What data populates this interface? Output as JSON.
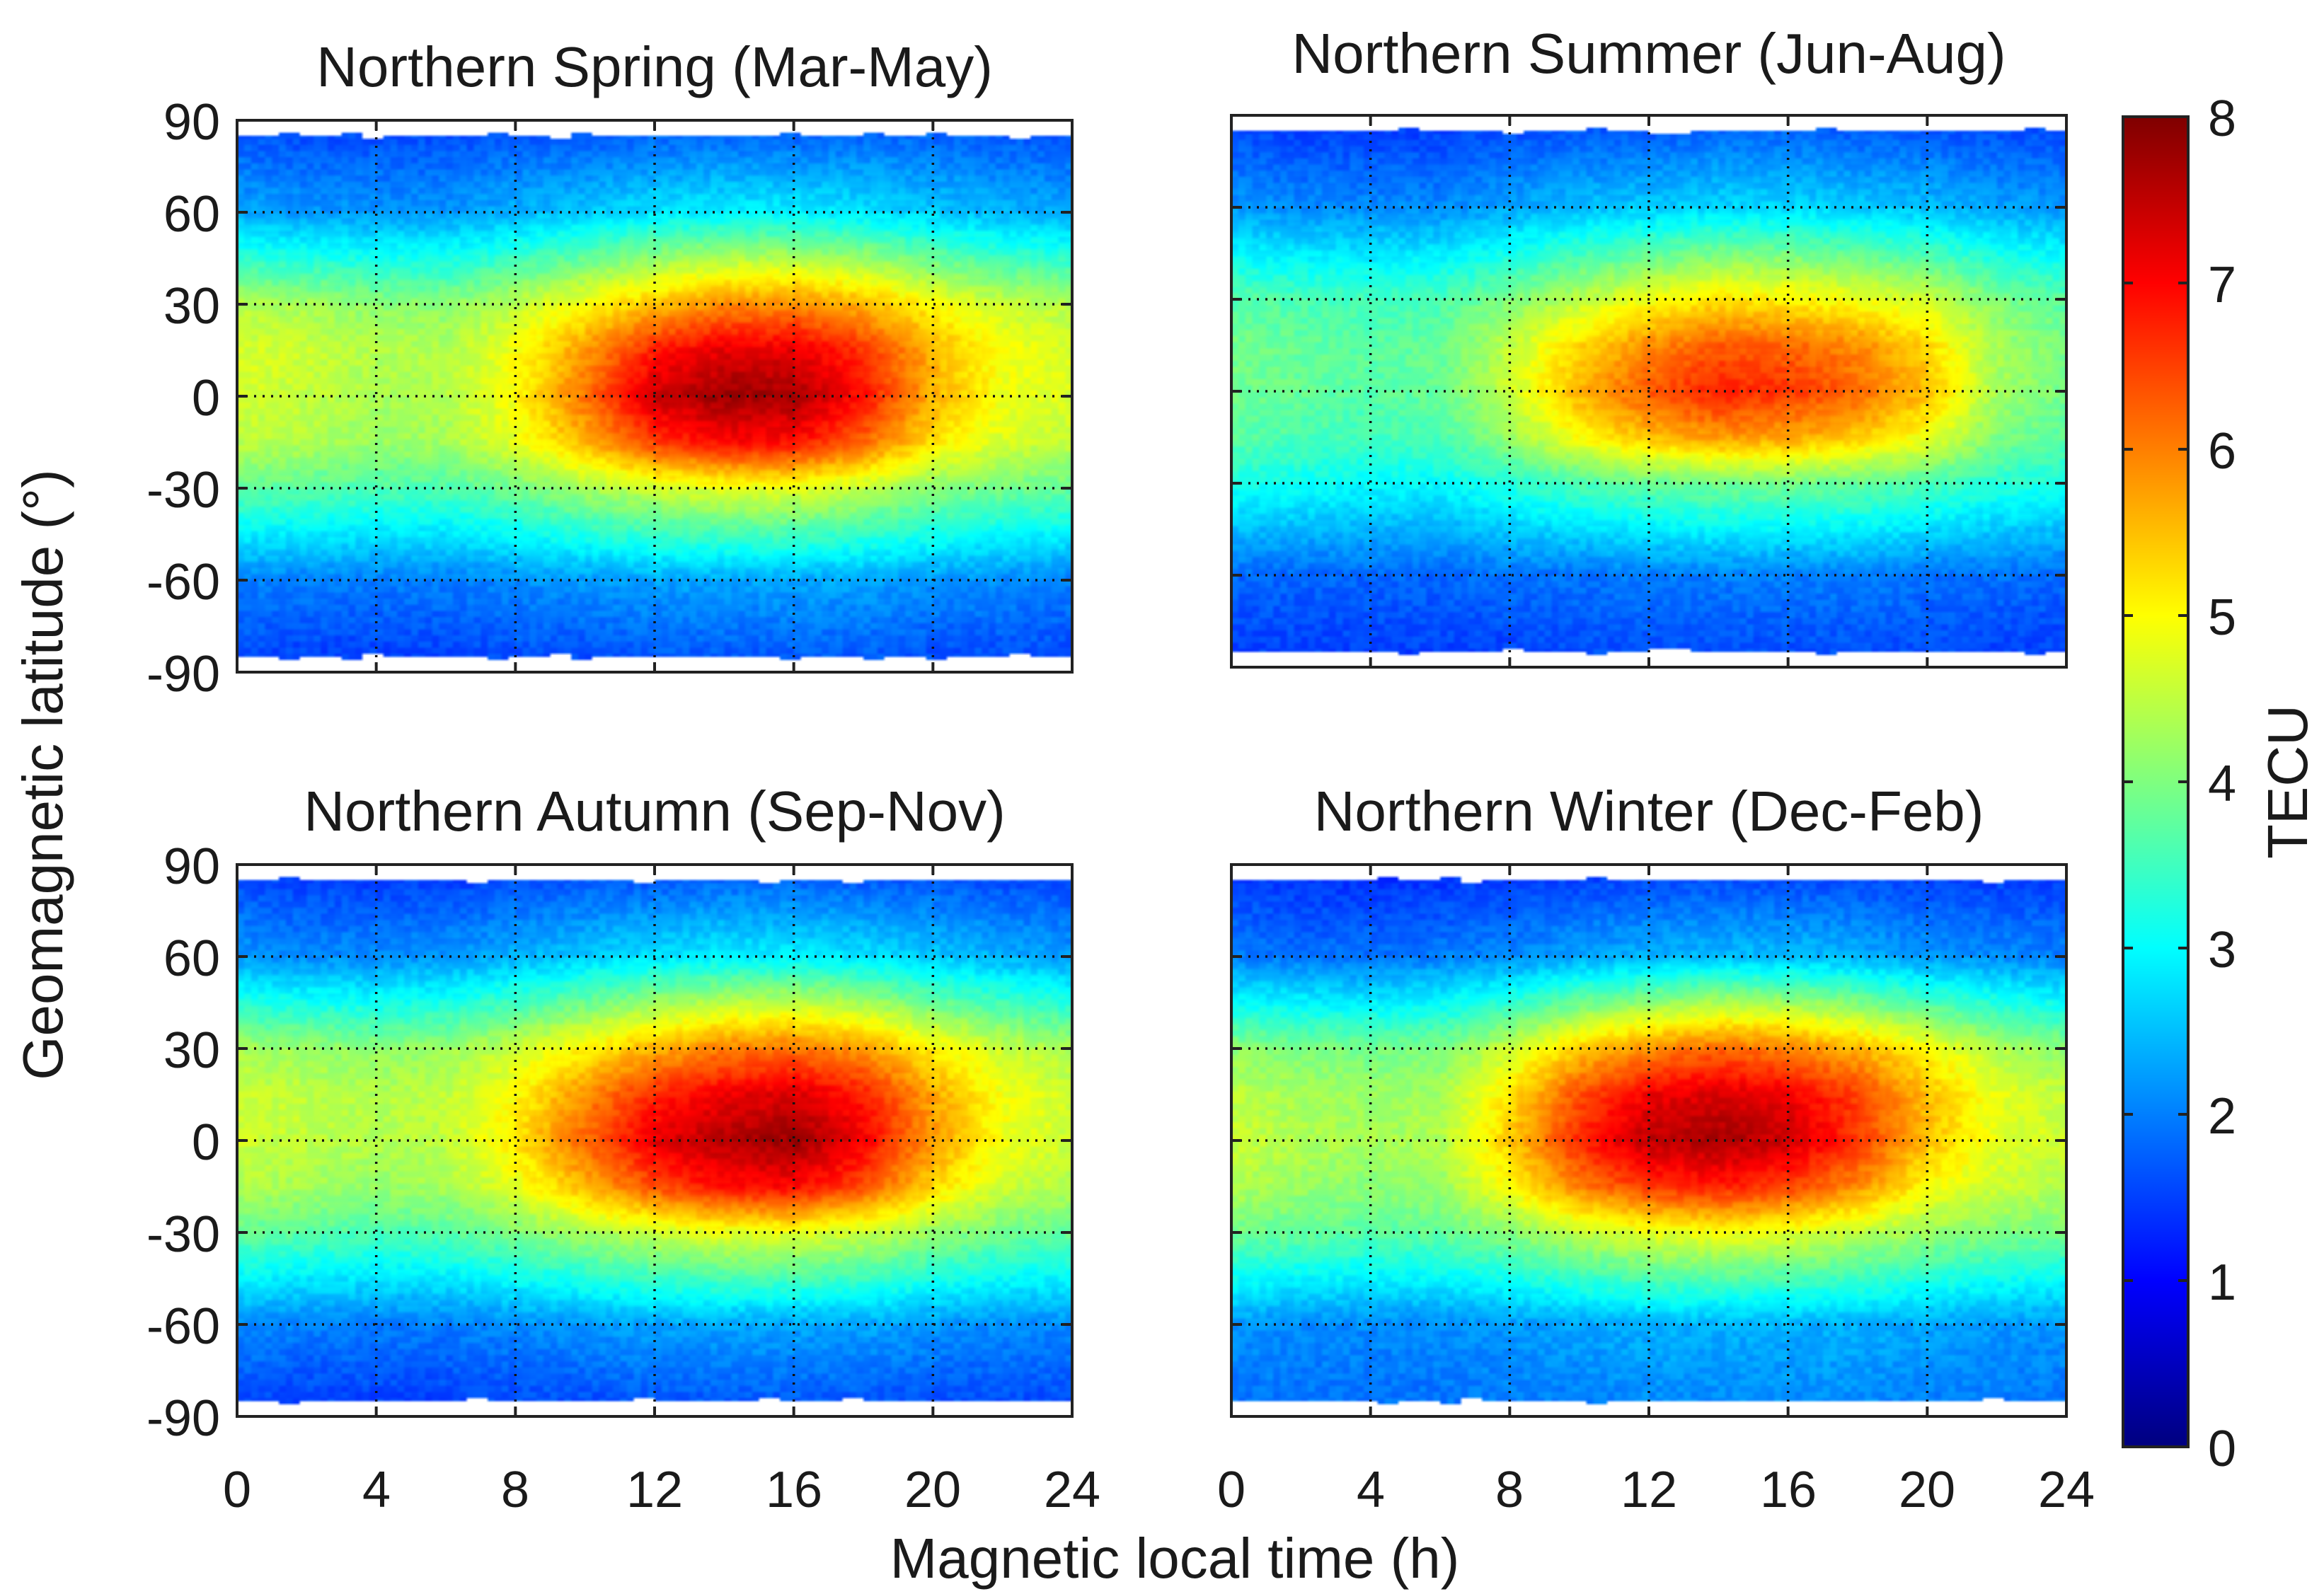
{
  "figure": {
    "ylabel": "Geomagnetic latitude (°)",
    "xlabel": "Magnetic local time (h)"
  },
  "colorbar": {
    "label": "TECU",
    "range": [
      0,
      8
    ],
    "ticks": [
      "0",
      "1",
      "2",
      "3",
      "4",
      "5",
      "6",
      "7",
      "8"
    ],
    "colors": [
      "#00007f",
      "#0000ff",
      "#007fff",
      "#00ffff",
      "#7fff7f",
      "#ffff00",
      "#ff7f00",
      "#ff0000",
      "#7f0000"
    ]
  },
  "chart_data": [
    {
      "type": "heatmap",
      "title": "Northern Spring (Mar-May)",
      "xlabel": "Magnetic local time (h)",
      "ylabel": "Geomagnetic latitude (°)",
      "xlim": [
        0,
        24
      ],
      "ylim": [
        -90,
        90
      ],
      "xticks": [
        "0",
        "4",
        "8",
        "12",
        "16",
        "20",
        "24"
      ],
      "yticks": [
        "90",
        "60",
        "30",
        "0",
        "-30",
        "-60",
        "-90"
      ],
      "grid": true,
      "mlt_h": [
        0,
        2,
        4,
        6,
        8,
        10,
        12,
        14,
        16,
        18,
        20,
        22,
        24
      ],
      "lat_deg": [
        85,
        60,
        30,
        15,
        0,
        -15,
        -30,
        -60,
        -85
      ],
      "tec": [
        [
          1.7,
          1.6,
          1.6,
          1.6,
          1.7,
          1.7,
          1.8,
          1.8,
          1.8,
          1.8,
          1.8,
          1.7,
          1.7
        ],
        [
          2.3,
          2.2,
          2.2,
          2.2,
          2.4,
          2.6,
          2.8,
          2.9,
          2.9,
          2.8,
          2.6,
          2.4,
          2.3
        ],
        [
          4.4,
          4.3,
          4.1,
          4.1,
          4.5,
          5.0,
          5.5,
          5.9,
          5.9,
          5.6,
          5.0,
          4.6,
          4.4
        ],
        [
          4.7,
          4.6,
          4.4,
          4.4,
          4.9,
          5.8,
          6.8,
          7.2,
          7.2,
          6.6,
          5.6,
          4.9,
          4.7
        ],
        [
          4.7,
          4.5,
          4.3,
          4.4,
          5.0,
          6.1,
          7.4,
          7.8,
          7.7,
          6.9,
          5.6,
          4.9,
          4.7
        ],
        [
          4.5,
          4.4,
          4.2,
          4.3,
          4.8,
          5.6,
          6.5,
          7.0,
          6.9,
          6.2,
          5.2,
          4.7,
          4.5
        ],
        [
          3.8,
          3.7,
          3.6,
          3.6,
          3.9,
          4.3,
          4.6,
          4.8,
          4.8,
          4.5,
          4.1,
          3.9,
          3.8
        ],
        [
          2.0,
          2.0,
          2.0,
          2.0,
          2.1,
          2.2,
          2.3,
          2.3,
          2.3,
          2.3,
          2.2,
          2.1,
          2.0
        ],
        [
          1.6,
          1.5,
          1.5,
          1.5,
          1.6,
          1.6,
          1.7,
          1.7,
          1.7,
          1.7,
          1.6,
          1.6,
          1.6
        ]
      ]
    },
    {
      "type": "heatmap",
      "title": "Northern Summer (Jun-Aug)",
      "xlabel": "Magnetic local time (h)",
      "ylabel": "Geomagnetic latitude (°)",
      "xlim": [
        0,
        24
      ],
      "ylim": [
        -90,
        90
      ],
      "xticks": [
        "0",
        "4",
        "8",
        "12",
        "16",
        "20",
        "24"
      ],
      "yticks": [
        "90",
        "60",
        "30",
        "0",
        "-30",
        "-60",
        "-90"
      ],
      "grid": true,
      "mlt_h": [
        0,
        2,
        4,
        6,
        8,
        10,
        12,
        14,
        16,
        18,
        20,
        22,
        24
      ],
      "lat_deg": [
        85,
        60,
        30,
        15,
        0,
        -15,
        -30,
        -60,
        -85
      ],
      "tec": [
        [
          1.6,
          1.5,
          1.5,
          1.5,
          1.6,
          1.7,
          1.7,
          1.8,
          1.8,
          1.7,
          1.7,
          1.6,
          1.6
        ],
        [
          2.2,
          2.1,
          2.1,
          2.1,
          2.3,
          2.5,
          2.6,
          2.7,
          2.7,
          2.6,
          2.5,
          2.3,
          2.2
        ],
        [
          3.7,
          3.6,
          3.5,
          3.6,
          4.0,
          4.5,
          4.9,
          5.2,
          5.1,
          4.9,
          4.6,
          4.0,
          3.7
        ],
        [
          3.9,
          3.8,
          3.7,
          3.8,
          4.5,
          5.3,
          5.9,
          6.3,
          6.2,
          5.9,
          5.3,
          4.3,
          3.9
        ],
        [
          3.9,
          3.8,
          3.7,
          3.8,
          4.6,
          5.6,
          6.3,
          6.8,
          6.6,
          6.2,
          5.5,
          4.3,
          3.9
        ],
        [
          3.7,
          3.6,
          3.5,
          3.6,
          4.2,
          5.0,
          5.5,
          5.8,
          5.7,
          5.4,
          4.9,
          4.0,
          3.7
        ],
        [
          3.2,
          3.1,
          3.0,
          3.0,
          3.3,
          3.6,
          3.8,
          3.9,
          3.9,
          3.8,
          3.6,
          3.3,
          3.2
        ],
        [
          1.8,
          1.8,
          1.8,
          1.8,
          1.9,
          1.9,
          2.0,
          2.0,
          2.0,
          2.0,
          1.9,
          1.9,
          1.8
        ],
        [
          1.5,
          1.5,
          1.5,
          1.5,
          1.5,
          1.6,
          1.6,
          1.6,
          1.6,
          1.6,
          1.6,
          1.5,
          1.5
        ]
      ]
    },
    {
      "type": "heatmap",
      "title": "Northern Autumn (Sep-Nov)",
      "xlabel": "Magnetic local time (h)",
      "ylabel": "Geomagnetic latitude (°)",
      "xlim": [
        0,
        24
      ],
      "ylim": [
        -90,
        90
      ],
      "xticks": [
        "0",
        "4",
        "8",
        "12",
        "16",
        "20",
        "24"
      ],
      "yticks": [
        "90",
        "60",
        "30",
        "0",
        "-30",
        "-60",
        "-90"
      ],
      "grid": true,
      "mlt_h": [
        0,
        2,
        4,
        6,
        8,
        10,
        12,
        14,
        16,
        18,
        20,
        22,
        24
      ],
      "lat_deg": [
        85,
        60,
        30,
        15,
        0,
        -15,
        -30,
        -60,
        -85
      ],
      "tec": [
        [
          1.6,
          1.5,
          1.5,
          1.5,
          1.6,
          1.7,
          1.7,
          1.8,
          1.8,
          1.7,
          1.7,
          1.6,
          1.6
        ],
        [
          2.2,
          2.1,
          2.1,
          2.2,
          2.4,
          2.6,
          2.8,
          2.9,
          2.9,
          2.8,
          2.6,
          2.4,
          2.2
        ],
        [
          4.3,
          4.2,
          4.1,
          4.2,
          4.6,
          5.1,
          5.6,
          6.0,
          6.1,
          5.8,
          5.1,
          4.6,
          4.3
        ],
        [
          4.6,
          4.5,
          4.4,
          4.5,
          5.0,
          5.9,
          6.7,
          7.1,
          7.3,
          6.8,
          5.7,
          4.9,
          4.6
        ],
        [
          4.6,
          4.5,
          4.4,
          4.5,
          5.2,
          6.2,
          7.2,
          7.6,
          7.8,
          7.1,
          5.8,
          4.9,
          4.6
        ],
        [
          4.4,
          4.3,
          4.2,
          4.3,
          4.8,
          5.6,
          6.4,
          6.9,
          7.0,
          6.4,
          5.3,
          4.6,
          4.4
        ],
        [
          3.8,
          3.7,
          3.6,
          3.7,
          4.0,
          4.3,
          4.6,
          4.8,
          4.8,
          4.6,
          4.2,
          3.9,
          3.8
        ],
        [
          2.1,
          2.0,
          2.0,
          2.0,
          2.1,
          2.2,
          2.3,
          2.3,
          2.3,
          2.3,
          2.2,
          2.1,
          2.1
        ],
        [
          1.6,
          1.5,
          1.5,
          1.5,
          1.6,
          1.6,
          1.7,
          1.7,
          1.7,
          1.7,
          1.6,
          1.6,
          1.6
        ]
      ]
    },
    {
      "type": "heatmap",
      "title": "Northern Winter (Dec-Feb)",
      "xlabel": "Magnetic local time (h)",
      "ylabel": "Geomagnetic latitude (°)",
      "xlim": [
        0,
        24
      ],
      "ylim": [
        -90,
        90
      ],
      "xticks": [
        "0",
        "4",
        "8",
        "12",
        "16",
        "20",
        "24"
      ],
      "yticks": [
        "90",
        "60",
        "30",
        "0",
        "-30",
        "-60",
        "-90"
      ],
      "grid": true,
      "mlt_h": [
        0,
        2,
        4,
        6,
        8,
        10,
        12,
        14,
        16,
        18,
        20,
        22,
        24
      ],
      "lat_deg": [
        85,
        60,
        30,
        15,
        0,
        -15,
        -30,
        -60,
        -85
      ],
      "tec": [
        [
          1.5,
          1.4,
          1.4,
          1.4,
          1.5,
          1.5,
          1.6,
          1.6,
          1.6,
          1.6,
          1.5,
          1.5,
          1.5
        ],
        [
          2.0,
          1.9,
          1.9,
          2.0,
          2.1,
          2.3,
          2.4,
          2.5,
          2.5,
          2.4,
          2.2,
          2.1,
          2.0
        ],
        [
          4.1,
          4.0,
          3.9,
          4.0,
          4.6,
          5.4,
          5.9,
          6.2,
          6.0,
          5.6,
          5.0,
          4.4,
          4.1
        ],
        [
          4.5,
          4.3,
          4.2,
          4.3,
          5.2,
          6.4,
          7.1,
          7.3,
          7.1,
          6.5,
          5.5,
          4.8,
          4.5
        ],
        [
          4.6,
          4.4,
          4.3,
          4.4,
          5.4,
          6.7,
          7.5,
          7.7,
          7.4,
          6.6,
          5.5,
          4.8,
          4.6
        ],
        [
          4.4,
          4.2,
          4.1,
          4.2,
          5.0,
          6.0,
          6.6,
          6.8,
          6.5,
          5.9,
          5.0,
          4.6,
          4.4
        ],
        [
          3.9,
          3.8,
          3.7,
          3.8,
          4.1,
          4.5,
          4.8,
          4.9,
          4.8,
          4.5,
          4.2,
          4.0,
          3.9
        ],
        [
          2.2,
          2.1,
          2.1,
          2.1,
          2.2,
          2.3,
          2.4,
          2.4,
          2.4,
          2.4,
          2.3,
          2.2,
          2.2
        ],
        [
          1.9,
          1.9,
          1.9,
          1.9,
          2.0,
          2.0,
          2.1,
          2.1,
          2.1,
          2.1,
          2.0,
          2.0,
          1.9
        ]
      ]
    }
  ]
}
